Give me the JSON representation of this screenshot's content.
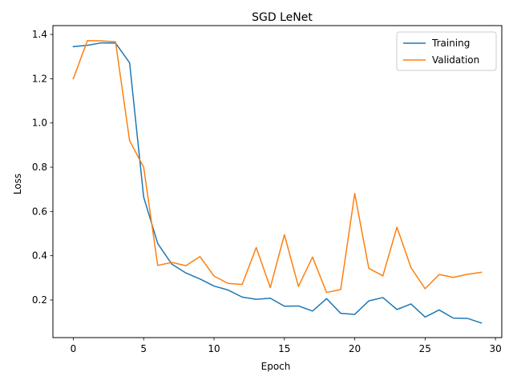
{
  "chart_data": {
    "type": "line",
    "title": "SGD LeNet",
    "xlabel": "Epoch",
    "ylabel": "Loss",
    "xlim": [
      -1.45,
      30.45
    ],
    "ylim": [
      0.03,
      1.44
    ],
    "xticks": [
      0,
      5,
      10,
      15,
      20,
      25,
      30
    ],
    "yticks": [
      0.2,
      0.4,
      0.6,
      0.8,
      1.0,
      1.2,
      1.4
    ],
    "xtick_labels": [
      "0",
      "5",
      "10",
      "15",
      "20",
      "25",
      "30"
    ],
    "ytick_labels": [
      "0.2",
      "0.4",
      "0.6",
      "0.8",
      "1.0",
      "1.2",
      "1.4"
    ],
    "grid": false,
    "legend_position": "top-right",
    "x": [
      0,
      1,
      2,
      3,
      4,
      5,
      6,
      7,
      8,
      9,
      10,
      11,
      12,
      13,
      14,
      15,
      16,
      17,
      18,
      19,
      20,
      21,
      22,
      23,
      24,
      25,
      26,
      27,
      28,
      29
    ],
    "series": [
      {
        "name": "Training",
        "color": "#1f77b4",
        "values": [
          1.345,
          1.351,
          1.362,
          1.361,
          1.272,
          0.665,
          0.455,
          0.362,
          0.322,
          0.295,
          0.263,
          0.245,
          0.213,
          0.203,
          0.208,
          0.172,
          0.173,
          0.15,
          0.206,
          0.14,
          0.135,
          0.196,
          0.211,
          0.157,
          0.182,
          0.123,
          0.155,
          0.118,
          0.117,
          0.096
        ]
      },
      {
        "name": "Validation",
        "color": "#ff7f0e",
        "values": [
          1.2,
          1.372,
          1.371,
          1.367,
          0.92,
          0.8,
          0.356,
          0.37,
          0.355,
          0.396,
          0.308,
          0.275,
          0.27,
          0.437,
          0.256,
          0.495,
          0.261,
          0.394,
          0.234,
          0.247,
          0.681,
          0.343,
          0.309,
          0.529,
          0.346,
          0.251,
          0.315,
          0.302,
          0.316,
          0.325
        ]
      }
    ]
  }
}
